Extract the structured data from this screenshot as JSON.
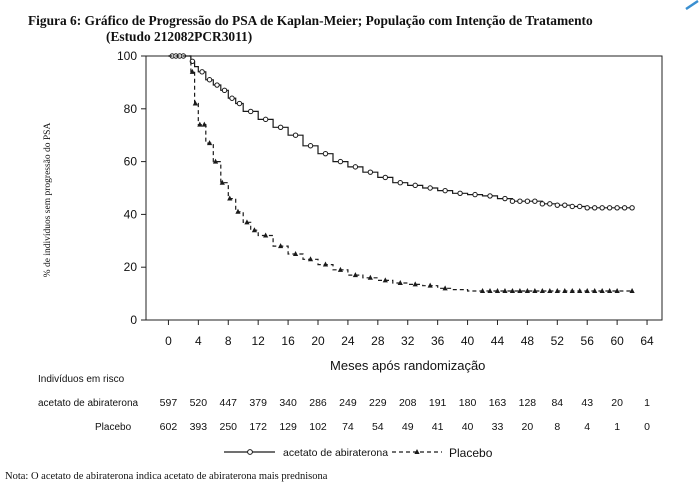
{
  "figure": {
    "title_line1": "Figura 6: Gráfico de Progressão do PSA de Kaplan-Meier; População com Intenção de Tratamento",
    "title_line2": "(Estudo 212082PCR3011)",
    "note": "Nota: O acetato de abiraterona indica acetato de abiraterona mais prednisona"
  },
  "chart_data": {
    "type": "line",
    "title": "Figura 6: Gráfico de Progressão do PSA de Kaplan-Meier; População com Intenção de Tratamento (Estudo 212082PCR3011)",
    "xlabel": "Meses após randomização",
    "ylabel": "% de indivíduos sem progressão do PSA",
    "xlim": [
      -3,
      66
    ],
    "ylim": [
      0,
      100
    ],
    "xticks": [
      0,
      4,
      8,
      12,
      16,
      20,
      24,
      28,
      32,
      36,
      40,
      44,
      48,
      52,
      56,
      60,
      64
    ],
    "yticks": [
      0,
      20,
      40,
      60,
      80,
      100
    ],
    "grid": false,
    "legend_position": "bottom",
    "series": [
      {
        "name": "acetato de abiraterona",
        "line_style": "solid",
        "marker": "circle",
        "color": "#1a1a1a",
        "x": [
          0,
          2.5,
          3,
          3.5,
          4,
          5,
          6,
          7,
          8,
          9,
          10,
          12,
          14,
          16,
          18,
          20,
          22,
          24,
          26,
          28,
          30,
          32,
          34,
          36,
          38,
          40,
          42,
          44,
          46,
          48,
          50,
          52,
          54,
          56,
          58,
          60,
          62
        ],
        "y": [
          100,
          100,
          98,
          96,
          94,
          91,
          89,
          87,
          84,
          82,
          79,
          76,
          73,
          70,
          66,
          63,
          60,
          58,
          56,
          54,
          52,
          51,
          50,
          49,
          48,
          47.5,
          47,
          46,
          45,
          45,
          44,
          43.5,
          43,
          42.5,
          42.5,
          42.5,
          42.5
        ],
        "censor_x": [
          0.5,
          1,
          1.5,
          2,
          3.2,
          4.5,
          5.5,
          6.5,
          7.5,
          8.5,
          9.5,
          11,
          13,
          15,
          17,
          19,
          21,
          23,
          25,
          27,
          29,
          31,
          33,
          35,
          37,
          39,
          41,
          43,
          45,
          46,
          47,
          48,
          49,
          50,
          51,
          52,
          53,
          54,
          55,
          56,
          57,
          58,
          59,
          60,
          61,
          62
        ]
      },
      {
        "name": "Placebo",
        "line_style": "dashed",
        "marker": "triangle",
        "color": "#1a1a1a",
        "x": [
          0,
          2.5,
          3,
          3.5,
          4,
          5,
          6,
          7,
          8,
          9,
          10,
          11,
          12,
          14,
          16,
          18,
          20,
          22,
          24,
          26,
          28,
          30,
          32,
          34,
          36,
          38,
          40,
          42,
          44,
          46,
          48,
          52,
          56,
          60,
          62
        ],
        "y": [
          100,
          100,
          94,
          82,
          74,
          67,
          60,
          52,
          46,
          41,
          37,
          34,
          32,
          28,
          25,
          23,
          21,
          19,
          17,
          16,
          15,
          14,
          13.5,
          13,
          12,
          11.5,
          11,
          11,
          11,
          11,
          11,
          11,
          11,
          11,
          11
        ],
        "censor_x": [
          3.2,
          3.6,
          4.2,
          4.8,
          5.5,
          6.3,
          7.2,
          8.2,
          9.3,
          10.5,
          11.5,
          13,
          15,
          17,
          19,
          21,
          23,
          25,
          27,
          29,
          31,
          33,
          35,
          37,
          42,
          43,
          44,
          45,
          46,
          47,
          48,
          49,
          50,
          51,
          52,
          53,
          54,
          55,
          56,
          57,
          58,
          59,
          60,
          62
        ]
      }
    ],
    "risk_table": {
      "header": "Indivíduos em risco",
      "times": [
        0,
        4,
        8,
        12,
        16,
        20,
        24,
        28,
        32,
        36,
        40,
        44,
        48,
        52,
        56,
        60,
        64
      ],
      "rows": [
        {
          "label": "acetato de abiraterona",
          "values": [
            "597",
            "520",
            "447",
            "379",
            "340",
            "286",
            "249",
            "229",
            "208",
            "191",
            "180",
            "163",
            "128",
            "84",
            "43",
            "20",
            "1"
          ]
        },
        {
          "label": "Placebo",
          "values": [
            "602",
            "393",
            "250",
            "172",
            "129",
            "102",
            "74",
            "54",
            "49",
            "41",
            "40",
            "33",
            "20",
            "8",
            "4",
            "1",
            "0"
          ]
        }
      ]
    }
  }
}
